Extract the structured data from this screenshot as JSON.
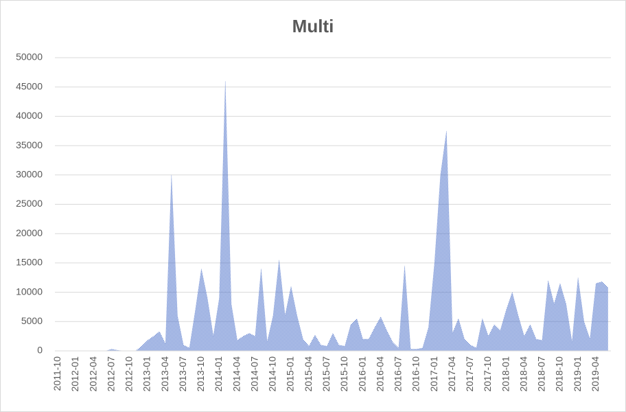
{
  "chart_data": {
    "type": "area",
    "title": "Multi",
    "color": "#4a6fc9",
    "grid": true,
    "categories": [
      "2011-10",
      null,
      null,
      "2012-01",
      null,
      null,
      "2012-04",
      null,
      null,
      "2012-07",
      null,
      null,
      "2012-10",
      null,
      null,
      "2013-01",
      null,
      null,
      "2013-04",
      null,
      null,
      "2013-07",
      null,
      null,
      "2013-10",
      null,
      null,
      "2014-01",
      null,
      null,
      "2014-04",
      null,
      null,
      "2014-07",
      null,
      null,
      "2014-10",
      null,
      null,
      "2015-01",
      null,
      null,
      "2015-04",
      null,
      null,
      "2015-07",
      null,
      null,
      "2015-10",
      null,
      null,
      "2016-01",
      null,
      null,
      "2016-04",
      null,
      null,
      "2016-07",
      null,
      null,
      "2016-10",
      null,
      null,
      "2017-01",
      null,
      null,
      "2017-04",
      null,
      null,
      "2017-07",
      null,
      null,
      "2017-10",
      null,
      null,
      "2018-01",
      null,
      null,
      "2018-04",
      null,
      null,
      "2018-07",
      null,
      null,
      "2018-10",
      null,
      null,
      "2019-01",
      null,
      null,
      "2019-04",
      null,
      null
    ],
    "values": [
      0,
      0,
      0,
      0,
      0,
      0,
      0,
      0,
      0,
      300,
      100,
      0,
      0,
      0,
      800,
      1800,
      2500,
      3300,
      1200,
      30000,
      6000,
      1000,
      500,
      7000,
      14000,
      9000,
      2500,
      9000,
      46000,
      8000,
      1800,
      2500,
      3000,
      2500,
      14000,
      1500,
      6000,
      15500,
      6000,
      11000,
      6000,
      2000,
      800,
      2700,
      1000,
      800,
      3000,
      1000,
      800,
      4500,
      5500,
      2000,
      2000,
      4000,
      5800,
      3500,
      1500,
      500,
      14500,
      300,
      300,
      500,
      4000,
      15000,
      30000,
      37500,
      3000,
      5500,
      2000,
      1000,
      500,
      5500,
      2500,
      4500,
      3500,
      7000,
      10000,
      6000,
      2500,
      4500,
      2000,
      1800,
      12000,
      8000,
      11500,
      8000,
      1500,
      12500,
      5000,
      2000,
      11500,
      11800,
      10800
    ],
    "ylim": [
      0,
      50000
    ],
    "yticks": [
      0,
      5000,
      10000,
      15000,
      20000,
      25000,
      30000,
      35000,
      40000,
      45000,
      50000
    ]
  }
}
